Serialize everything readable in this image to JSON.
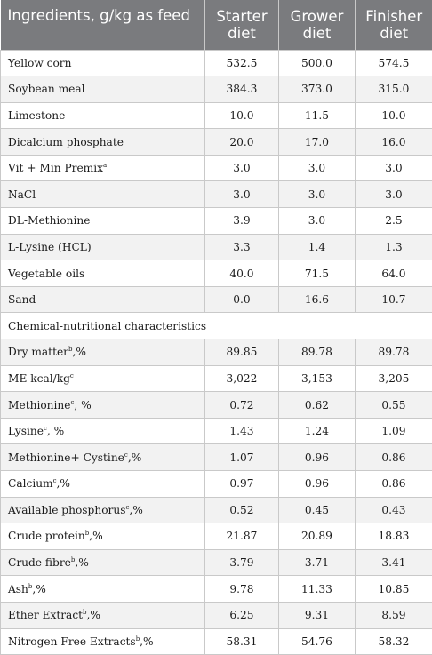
{
  "header": {
    "ingredients": "Ingredients, g/kg as feed",
    "starter": "Starter diet",
    "grower": "Grower diet",
    "finisher": "Finisher diet"
  },
  "ingredient_rows": [
    {
      "name": "Yellow corn",
      "sup": "",
      "suffix": "",
      "starter": "532.5",
      "grower": "500.0",
      "finisher": "574.5"
    },
    {
      "name": "Soybean meal",
      "sup": "",
      "suffix": "",
      "starter": "384.3",
      "grower": "373.0",
      "finisher": "315.0"
    },
    {
      "name": "Limestone",
      "sup": "",
      "suffix": "",
      "starter": "10.0",
      "grower": "11.5",
      "finisher": "10.0"
    },
    {
      "name": "Dicalcium phosphate",
      "sup": "",
      "suffix": "",
      "starter": "20.0",
      "grower": "17.0",
      "finisher": "16.0"
    },
    {
      "name": "Vit + Min Premix",
      "sup": "a",
      "suffix": "",
      "starter": "3.0",
      "grower": "3.0",
      "finisher": "3.0"
    },
    {
      "name": "NaCl",
      "sup": "",
      "suffix": "",
      "starter": "3.0",
      "grower": "3.0",
      "finisher": "3.0"
    },
    {
      "name": "DL-Methionine",
      "sup": "",
      "suffix": "",
      "starter": "3.9",
      "grower": "3.0",
      "finisher": "2.5"
    },
    {
      "name": "L-Lysine (HCL)",
      "sup": "",
      "suffix": "",
      "starter": "3.3",
      "grower": "1.4",
      "finisher": "1.3"
    },
    {
      "name": "Vegetable oils",
      "sup": "",
      "suffix": "",
      "starter": "40.0",
      "grower": "71.5",
      "finisher": "64.0"
    },
    {
      "name": "Sand",
      "sup": "",
      "suffix": "",
      "starter": "0.0",
      "grower": "16.6",
      "finisher": "10.7"
    }
  ],
  "section_title": "Chemical-nutritional characteristics",
  "chemical_rows": [
    {
      "name": "Dry matter",
      "sup": "b",
      "suffix": ",%",
      "starter": "89.85",
      "grower": "89.78",
      "finisher": "89.78"
    },
    {
      "name": "ME kcal/kg",
      "sup": "c",
      "suffix": "",
      "starter": "3,022",
      "grower": "3,153",
      "finisher": "3,205"
    },
    {
      "name": "Methionine",
      "sup": "c",
      "suffix": ", %",
      "starter": "0.72",
      "grower": "0.62",
      "finisher": "0.55"
    },
    {
      "name": "Lysine",
      "sup": "c",
      "suffix": ", %",
      "starter": "1.43",
      "grower": "1.24",
      "finisher": "1.09"
    },
    {
      "name": "Methionine+ Cystine",
      "sup": "c",
      "suffix": ",%",
      "starter": "1.07",
      "grower": "0.96",
      "finisher": "0.86"
    },
    {
      "name": "Calcium",
      "sup": "c",
      "suffix": ",%",
      "starter": "0.97",
      "grower": "0.96",
      "finisher": "0.86"
    },
    {
      "name": "Available phosphorus",
      "sup": "c",
      "suffix": ",%",
      "starter": "0.52",
      "grower": "0.45",
      "finisher": "0.43"
    },
    {
      "name": "Crude protein",
      "sup": "b",
      "suffix": ",%",
      "starter": "21.87",
      "grower": "20.89",
      "finisher": "18.83"
    },
    {
      "name": "Crude fibre",
      "sup": "b",
      "suffix": ",%",
      "starter": "3.79",
      "grower": "3.71",
      "finisher": "3.41"
    },
    {
      "name": "Ash",
      "sup": "b",
      "suffix": ",%",
      "starter": "9.78",
      "grower": "11.33",
      "finisher": "10.85"
    },
    {
      "name": "Ether Extract",
      "sup": "b",
      "suffix": ",%",
      "starter": "6.25",
      "grower": "9.31",
      "finisher": "8.59"
    },
    {
      "name": "Nitrogen Free Extracts",
      "sup": "b",
      "suffix": ",%",
      "starter": "58.31",
      "grower": "54.76",
      "finisher": "58.32"
    }
  ]
}
